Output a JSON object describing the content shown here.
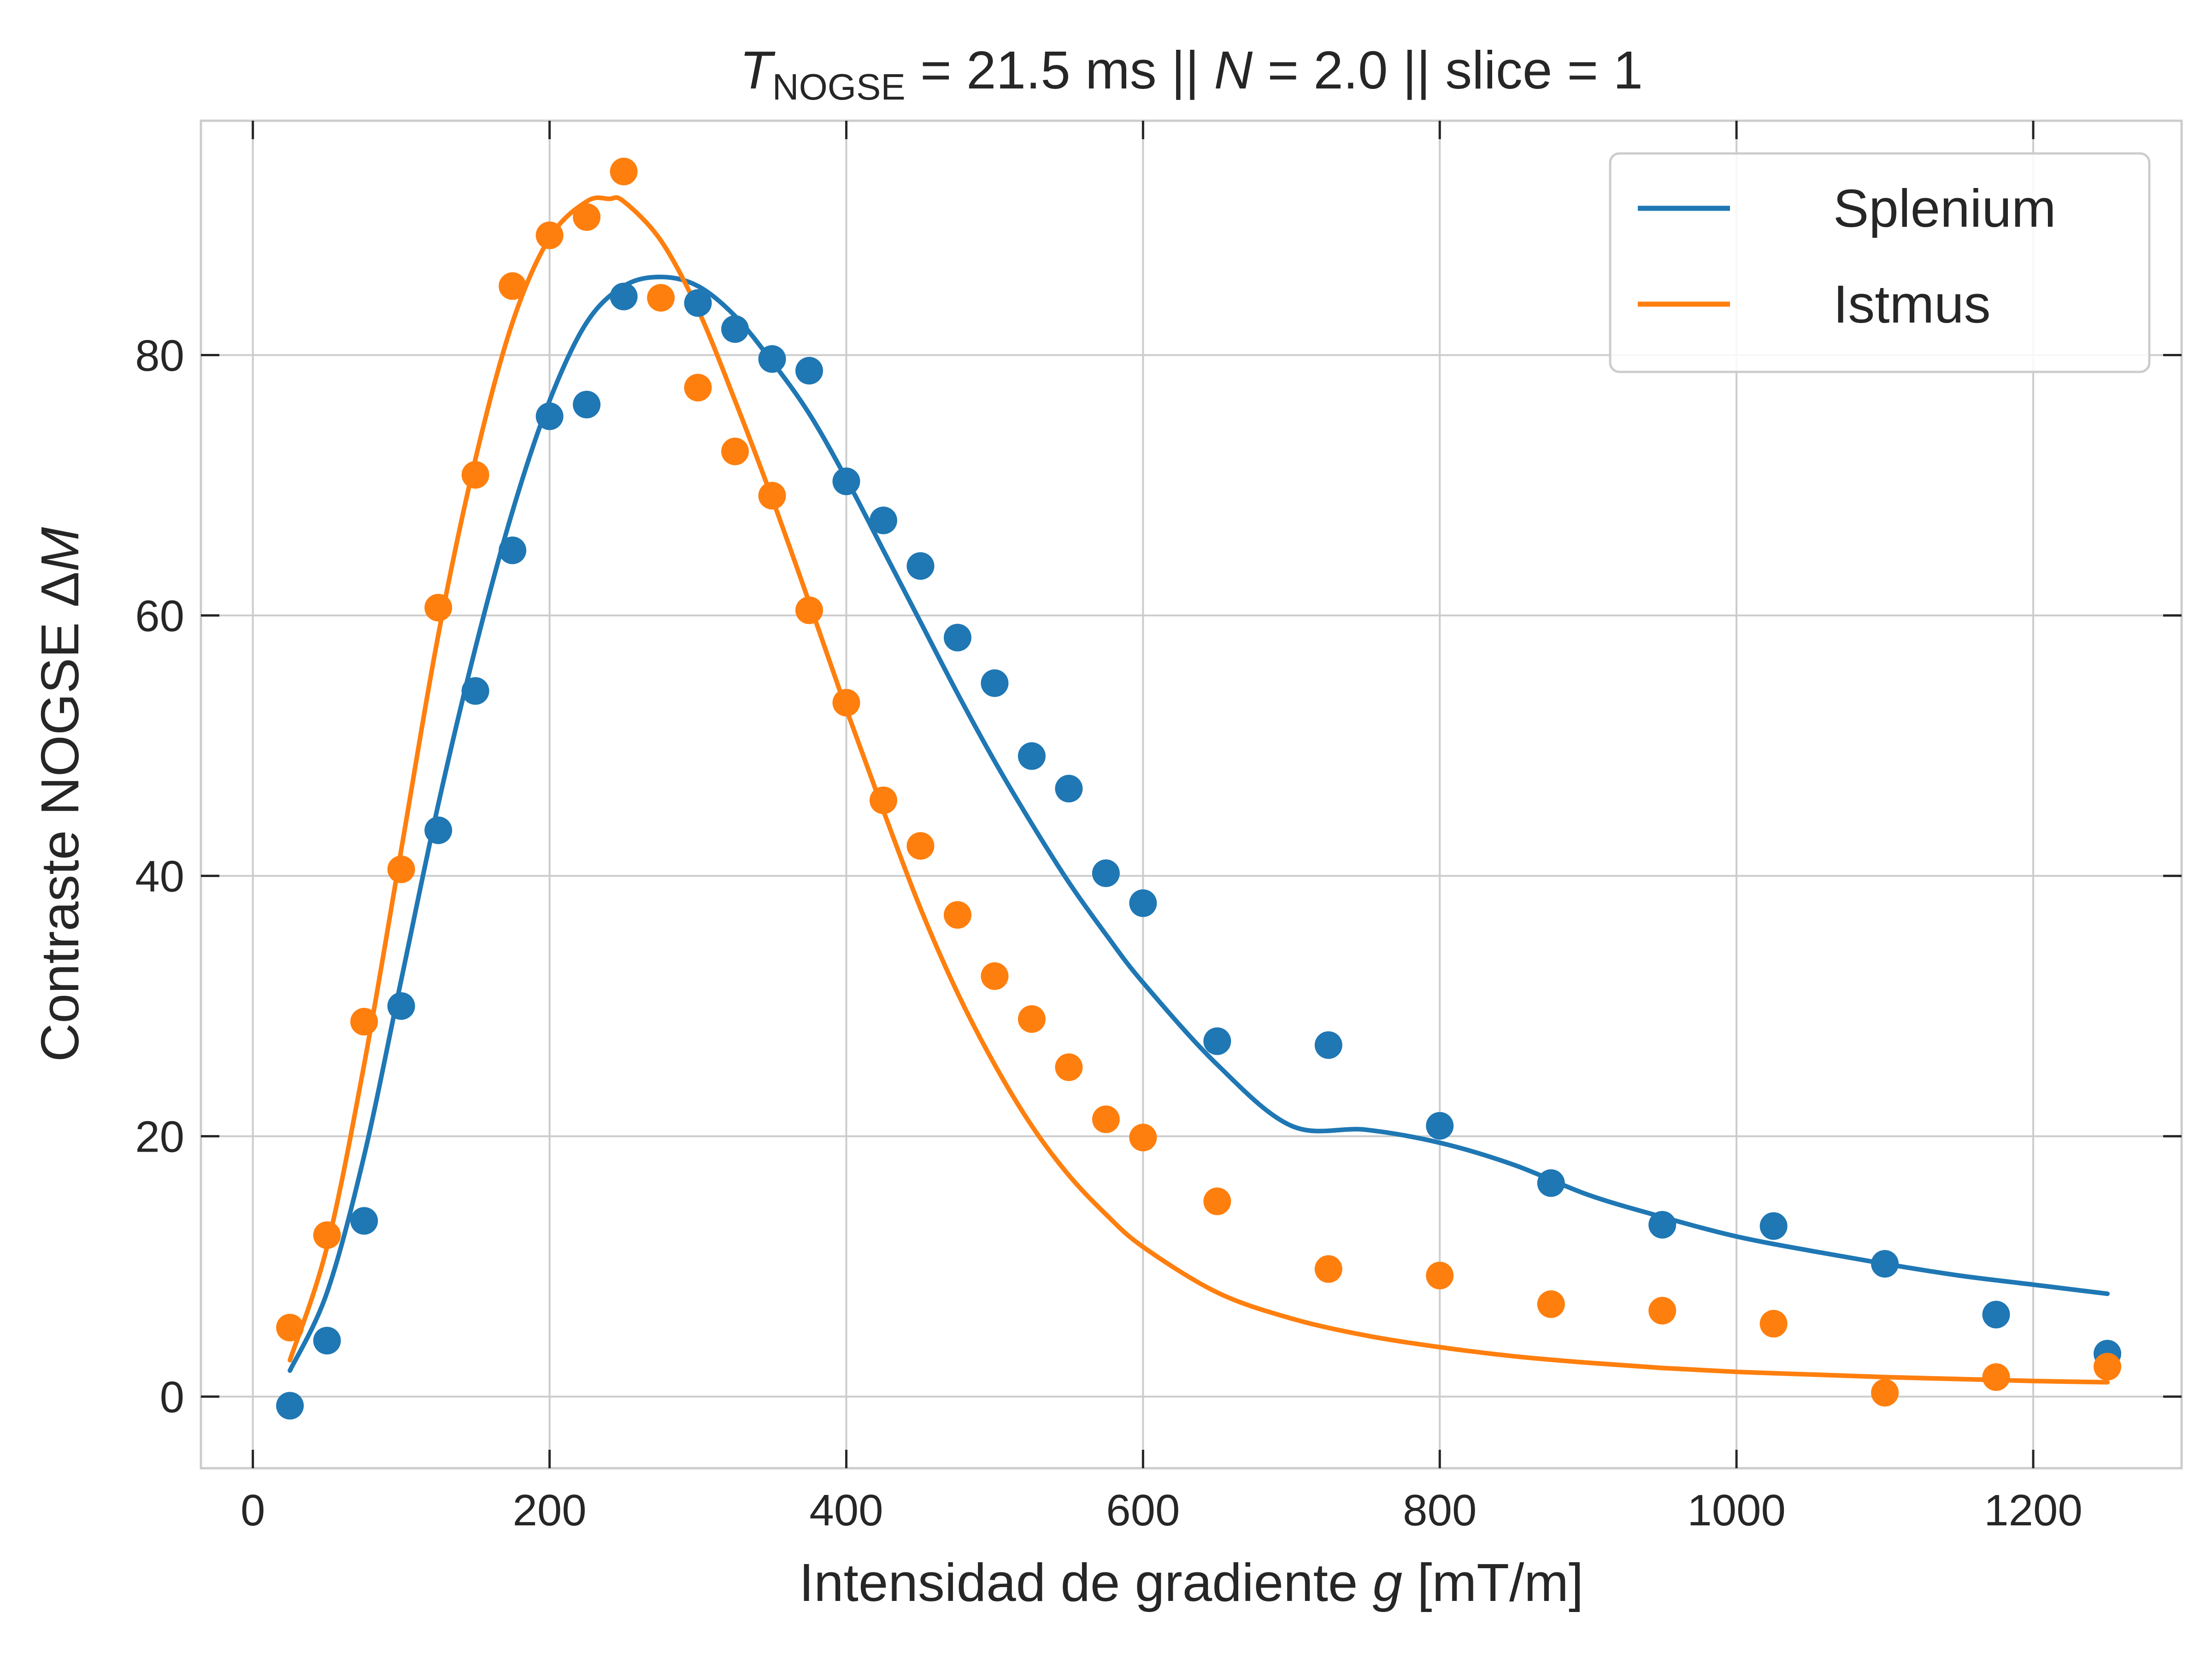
{
  "chart_data": {
    "type": "scatter",
    "title": {
      "t_symbol": "T",
      "t_subscript": "NOGSE",
      "t_rest": " = 21.5 ms  ||  ",
      "n_symbol": "N",
      "n_rest": " = 2.0 || slice = 1"
    },
    "xlabel": {
      "prefix": "Intensidad de gradiente ",
      "var": "g",
      "suffix": " [mT/m]"
    },
    "ylabel": {
      "prefix": "Contraste NOGSE Δ",
      "var": "M"
    },
    "xlim": [
      -35,
      1300
    ],
    "ylim": [
      -5.5,
      98
    ],
    "xticks": [
      0,
      200,
      400,
      600,
      800,
      1000,
      1200
    ],
    "yticks": [
      0,
      20,
      40,
      60,
      80
    ],
    "grid": true,
    "legend": {
      "placement": "top-right",
      "entries": [
        "Splenium",
        "Istmus"
      ]
    },
    "series": [
      {
        "name": "Splenium",
        "color": "#1f77b4",
        "points": {
          "x": [
            25,
            50,
            75,
            100,
            125,
            150,
            175,
            200,
            225,
            250,
            300,
            325,
            350,
            375,
            400,
            425,
            450,
            475,
            500,
            525,
            550,
            575,
            600,
            650,
            725,
            800,
            875,
            950,
            1025,
            1100,
            1175,
            1250
          ],
          "y": [
            -0.7,
            4.3,
            13.5,
            30.0,
            43.5,
            54.2,
            65.0,
            75.3,
            76.2,
            84.5,
            84.0,
            82.0,
            79.7,
            78.8,
            70.3,
            67.3,
            63.8,
            58.3,
            54.8,
            49.2,
            46.7,
            40.2,
            37.9,
            27.3,
            27.0,
            20.8,
            16.4,
            13.2,
            13.1,
            10.2,
            6.3,
            3.3
          ]
        },
        "fit": {
          "x": [
            25,
            50,
            75,
            100,
            125,
            150,
            175,
            200,
            225,
            250,
            275,
            300,
            325,
            350,
            375,
            400,
            425,
            450,
            475,
            500,
            525,
            550,
            575,
            600,
            650,
            700,
            750,
            800,
            850,
            900,
            950,
            1000,
            1050,
            1100,
            1150,
            1200,
            1250
          ],
          "y": [
            2.0,
            8.0,
            18.5,
            32.0,
            45.5,
            57.5,
            68.0,
            76.5,
            82.5,
            85.3,
            86.0,
            85.3,
            83.0,
            79.5,
            75.5,
            70.5,
            65.0,
            59.5,
            54.0,
            48.8,
            44.0,
            39.5,
            35.5,
            31.8,
            25.5,
            20.8,
            20.5,
            19.5,
            17.8,
            15.5,
            13.8,
            12.3,
            11.2,
            10.2,
            9.3,
            8.6,
            7.9
          ]
        }
      },
      {
        "name": "Istmus",
        "color": "#ff7f0e",
        "points": {
          "x": [
            25,
            50,
            75,
            100,
            125,
            150,
            175,
            200,
            225,
            250,
            275,
            300,
            325,
            350,
            375,
            400,
            425,
            450,
            475,
            500,
            525,
            550,
            575,
            600,
            650,
            725,
            800,
            875,
            950,
            1025,
            1100,
            1175,
            1250
          ],
          "y": [
            5.3,
            12.4,
            28.8,
            40.5,
            60.6,
            70.8,
            85.3,
            89.2,
            90.6,
            94.1,
            84.4,
            77.5,
            72.6,
            69.2,
            60.4,
            53.3,
            45.8,
            42.3,
            37.0,
            32.3,
            29.0,
            25.3,
            21.3,
            19.9,
            15.0,
            9.8,
            9.3,
            7.1,
            6.6,
            5.6,
            0.3,
            1.5,
            2.3
          ]
        },
        "fit": {
          "x": [
            25,
            50,
            75,
            100,
            125,
            150,
            175,
            200,
            225,
            240,
            250,
            275,
            300,
            325,
            350,
            375,
            400,
            425,
            450,
            475,
            500,
            525,
            550,
            575,
            600,
            650,
            700,
            750,
            800,
            850,
            900,
            950,
            1000,
            1050,
            1100,
            1150,
            1200,
            1250
          ],
          "y": [
            2.8,
            11.5,
            25.5,
            42.0,
            58.5,
            72.0,
            82.5,
            89.0,
            91.8,
            92.0,
            91.8,
            88.8,
            83.5,
            76.5,
            69.0,
            61.0,
            52.8,
            45.0,
            37.5,
            31.0,
            25.5,
            20.8,
            17.0,
            14.0,
            11.5,
            8.0,
            6.0,
            4.7,
            3.8,
            3.1,
            2.6,
            2.2,
            1.9,
            1.7,
            1.5,
            1.35,
            1.2,
            1.1
          ]
        }
      }
    ]
  }
}
